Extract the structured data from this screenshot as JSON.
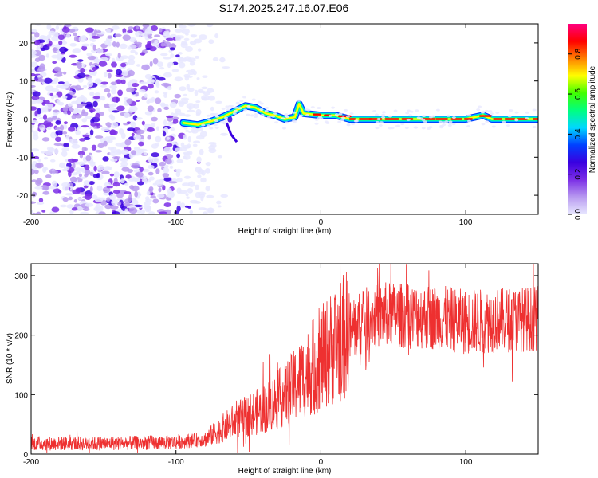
{
  "figure_title": "S174.2025.247.16.07.E06",
  "chart_data": [
    {
      "type": "heatmap",
      "name": "spectrogram",
      "xlabel": "Height of straight line (km)",
      "ylabel": "Frequency (Hz)",
      "xlim": [
        -200,
        150
      ],
      "ylim": [
        -25,
        25
      ],
      "xticks": [
        -200,
        -100,
        0,
        100
      ],
      "yticks": [
        -20,
        -10,
        0,
        10,
        20
      ],
      "xtick_labels": [
        "-200",
        "-100",
        "0",
        "100"
      ],
      "ytick_labels": [
        "-20",
        "-10",
        "0",
        "10",
        "20"
      ],
      "noise_region_x": [
        -200,
        -65
      ],
      "signal_trace": [
        {
          "x": -95,
          "y": -1
        },
        {
          "x": -85,
          "y": -1.5
        },
        {
          "x": -75,
          "y": -0.5
        },
        {
          "x": -68,
          "y": 0.5
        },
        {
          "x": -60,
          "y": 2
        },
        {
          "x": -52,
          "y": 3.5
        },
        {
          "x": -45,
          "y": 3
        },
        {
          "x": -38,
          "y": 1.5
        },
        {
          "x": -32,
          "y": 1
        },
        {
          "x": -25,
          "y": 0
        },
        {
          "x": -18,
          "y": 0.5
        },
        {
          "x": -15,
          "y": 4
        },
        {
          "x": -12,
          "y": 1.5
        },
        {
          "x": 0,
          "y": 1
        },
        {
          "x": 10,
          "y": 1
        },
        {
          "x": 20,
          "y": 0
        },
        {
          "x": 60,
          "y": 0
        },
        {
          "x": 100,
          "y": 0
        },
        {
          "x": 112,
          "y": 1
        },
        {
          "x": 118,
          "y": 0
        },
        {
          "x": 150,
          "y": 0
        }
      ],
      "colorbar": {
        "label": "Normalized spectral amplitude",
        "range": [
          0.0,
          0.95
        ],
        "ticks": [
          0.0,
          0.2,
          0.4,
          0.6,
          0.8
        ],
        "tick_labels": [
          "0.0",
          "0.2",
          "0.4",
          "0.6",
          "0.8"
        ],
        "colormap": [
          "#e8e8ff",
          "#b89af0",
          "#7b2ee6",
          "#3a00e0",
          "#0040ff",
          "#00d8ff",
          "#00ff80",
          "#40ff00",
          "#ffff00",
          "#ff8000",
          "#ff0000",
          "#ff0080"
        ]
      }
    },
    {
      "type": "line",
      "name": "snr",
      "xlabel": "Height of straight line (km)",
      "ylabel": "SNR (10 * v/v)",
      "xlim": [
        -200,
        150
      ],
      "ylim": [
        0,
        320
      ],
      "xticks": [
        -200,
        -100,
        0,
        100
      ],
      "yticks": [
        0,
        100,
        200,
        300
      ],
      "xtick_labels": [
        "-200",
        "-100",
        "0",
        "100"
      ],
      "ytick_labels": [
        "0",
        "100",
        "200",
        "300"
      ],
      "color": "#ee3030",
      "trend": [
        {
          "x": -200,
          "y": 18
        },
        {
          "x": -150,
          "y": 18
        },
        {
          "x": -100,
          "y": 20
        },
        {
          "x": -80,
          "y": 25
        },
        {
          "x": -70,
          "y": 40
        },
        {
          "x": -60,
          "y": 55
        },
        {
          "x": -50,
          "y": 65
        },
        {
          "x": -40,
          "y": 75
        },
        {
          "x": -30,
          "y": 90
        },
        {
          "x": -20,
          "y": 110
        },
        {
          "x": -10,
          "y": 135
        },
        {
          "x": 0,
          "y": 160
        },
        {
          "x": 10,
          "y": 185
        },
        {
          "x": 20,
          "y": 205
        },
        {
          "x": 30,
          "y": 225
        },
        {
          "x": 45,
          "y": 235
        },
        {
          "x": 60,
          "y": 232
        },
        {
          "x": 80,
          "y": 230
        },
        {
          "x": 100,
          "y": 222
        },
        {
          "x": 120,
          "y": 225
        },
        {
          "x": 150,
          "y": 228
        }
      ]
    }
  ]
}
